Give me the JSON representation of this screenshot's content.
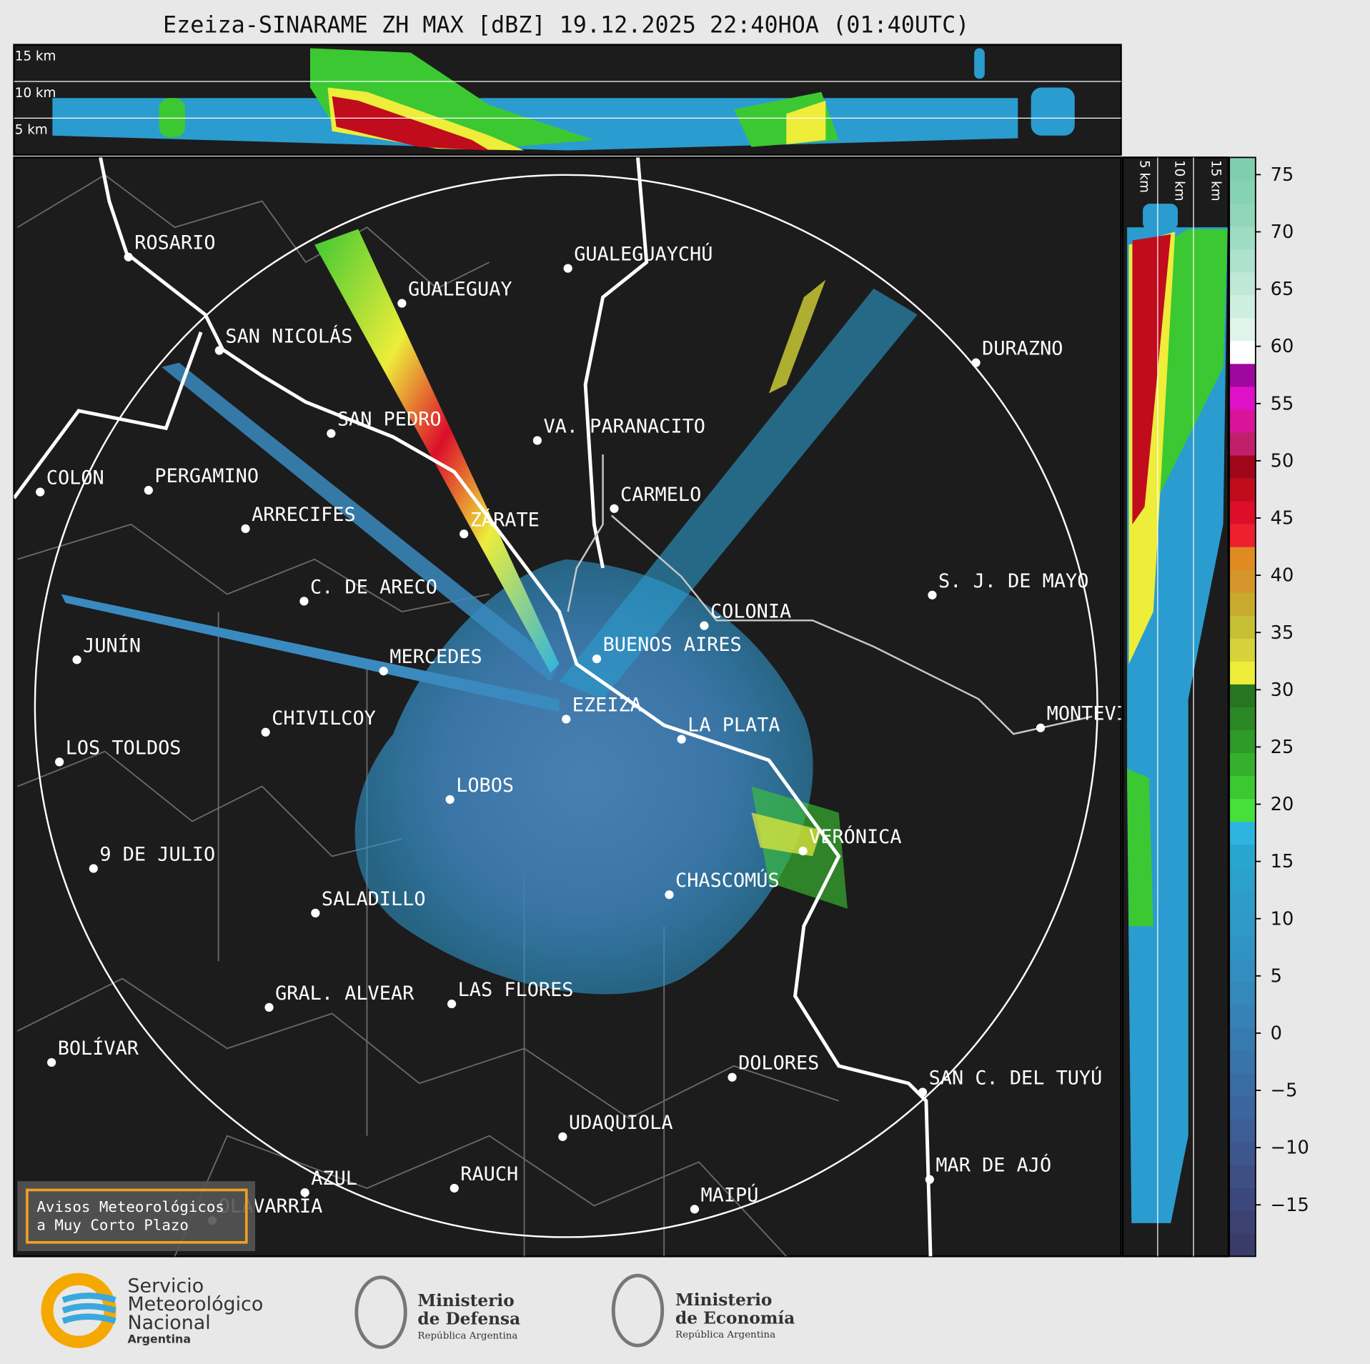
{
  "title": "Ezeiza-SINARAME ZH MAX [dBZ] 19.12.2025 22:40HOA (01:40UTC)",
  "cross_section_top": {
    "height_labels": [
      "15 km",
      "10 km",
      "5 km"
    ]
  },
  "cross_section_side": {
    "height_labels": [
      "5 km",
      "10 km",
      "15 km"
    ]
  },
  "colorbar": {
    "lim": [
      -19.5,
      76.5
    ],
    "ticks": [
      75,
      70,
      65,
      60,
      55,
      50,
      45,
      40,
      35,
      30,
      25,
      20,
      15,
      10,
      5,
      0,
      {
        "value": -5,
        "label": "−5"
      },
      {
        "value": -10,
        "label": "−10"
      },
      {
        "value": -15,
        "label": "−15"
      }
    ],
    "colors": [
      "#3a3c68",
      "#3b4272",
      "#3c487b",
      "#3d4f85",
      "#3d568e",
      "#3c5d96",
      "#3b659d",
      "#3a6ca4",
      "#3873aa",
      "#377ab0",
      "#3681b5",
      "#3488ba",
      "#338ebf",
      "#3193c3",
      "#2f98c6",
      "#2d9cc9",
      "#2ba1cc",
      "#29a6d0",
      "#2db4e0",
      "#47e03a",
      "#3cc832",
      "#35b02c",
      "#2e9a27",
      "#2a8824",
      "#267620",
      "#eded3a",
      "#d6d23a",
      "#c6bf34",
      "#c8aa2e",
      "#d4962a",
      "#e08a22",
      "#ee2030",
      "#dc0e2a",
      "#c00c1c",
      "#a0061a",
      "#c0206a",
      "#d8149a",
      "#e010c8",
      "#a006a0",
      "#ffffff",
      "#e0f4ec",
      "#cfeee2",
      "#bfe8d8",
      "#afe2ce",
      "#9fdcc4",
      "#90d6bb",
      "#86d2b4",
      "#80ceb0"
    ]
  },
  "cities": [
    "ROSARIO",
    "GUALEGUAYCHÚ",
    "GUALEGUAY",
    "SAN NICOLÁS",
    "DURAZNO",
    "SAN PEDRO",
    "VA. PARANACITO",
    "COLON",
    "PERGAMINO",
    "CARMELO",
    "ARRECIFES",
    "ZÁRATE",
    "C. DE ARECO",
    "S. J. DE MAYO",
    "COLONIA",
    "JUNÍN",
    "BUENOS AIRES",
    "MERCEDES",
    "MONTEVIDEO",
    "EZEIZA",
    "CHIVILCOY",
    "LA PLATA",
    "LOS TOLDOS",
    "LOBOS",
    "VERÓNICA",
    "9 DE JULIO",
    "CHASCOMÚS",
    "SALADILLO",
    "GRAL. ALVEAR",
    "LAS FLORES",
    "BOLÍVAR",
    "DOLORES",
    "SAN C. DEL TUYÚ",
    "UDAQUIOLA",
    "MAR DE AJÓ",
    "RAUCH",
    "AZUL",
    "OLAVARRÍA",
    "MAIPÚ"
  ],
  "notice": [
    "Avisos Meteorológicos",
    "a Muy Corto Plazo"
  ],
  "logos": [
    {
      "lines": [
        "Servicio",
        "Meteorológico",
        "Nacional",
        "Argentina"
      ]
    },
    {
      "lines": [
        "Ministerio",
        "de Defensa",
        "República Argentina"
      ]
    },
    {
      "lines": [
        "Ministerio",
        "de Economía",
        "República Argentina"
      ]
    }
  ]
}
